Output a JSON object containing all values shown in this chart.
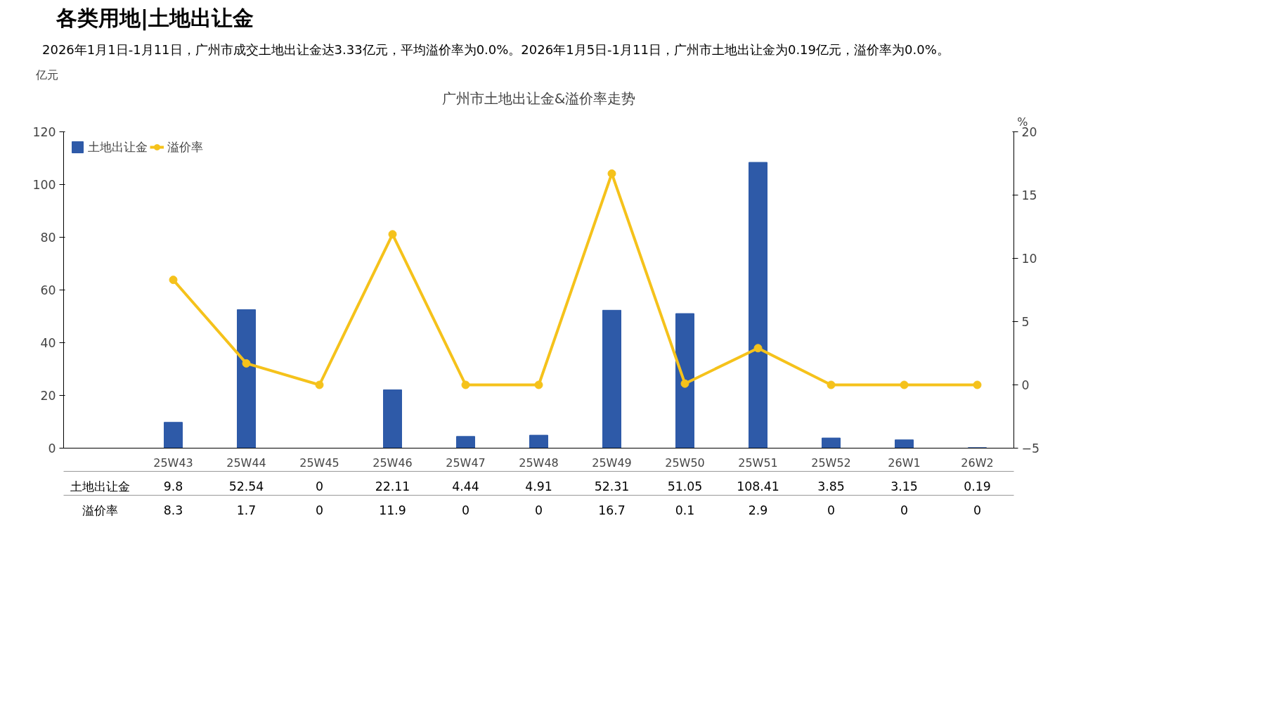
{
  "chart_data": {
    "type": "bar",
    "title": "广州市土地出让金&溢价率走势",
    "subtitle": "2026年1月1日-1月11日，广州市成交土地出让金达3.33亿元，平均溢价率为0.0%。2026年1月5日-1月11日，广州市土地出让金为0.19亿元，溢价率为0.0%。",
    "annotations": [
      "各类用地|土地出让金"
    ],
    "ylabel": "亿元",
    "y2label": "%",
    "categories": [
      "25W43",
      "25W44",
      "25W45",
      "25W46",
      "25W47",
      "25W48",
      "25W49",
      "25W50",
      "25W51",
      "25W52",
      "26W1",
      "26W2"
    ],
    "series": [
      {
        "name": "土地出让金",
        "color": "#2e5aa8",
        "values": [
          9.8,
          52.54,
          0,
          22.11,
          4.44,
          4.91,
          52.31,
          51.05,
          108.41,
          3.85,
          3.15,
          0.19
        ]
      },
      {
        "name": "溢价率",
        "type": "line",
        "color": "#f5c21b",
        "axis": "y2",
        "values": [
          8.3,
          1.7,
          0,
          11.9,
          0,
          0,
          16.7,
          0.1,
          2.9,
          0,
          0,
          0
        ]
      }
    ],
    "ylim": [
      0,
      120
    ],
    "yticks": [
      0,
      20,
      40,
      60,
      80,
      100,
      120
    ],
    "y2lim": [
      -5,
      20
    ],
    "y2ticks": [
      -5,
      0,
      5,
      10,
      15,
      20
    ],
    "marker": "circle",
    "line_style": "solid",
    "grid": false,
    "legend": "top left",
    "data_labels": true
  }
}
